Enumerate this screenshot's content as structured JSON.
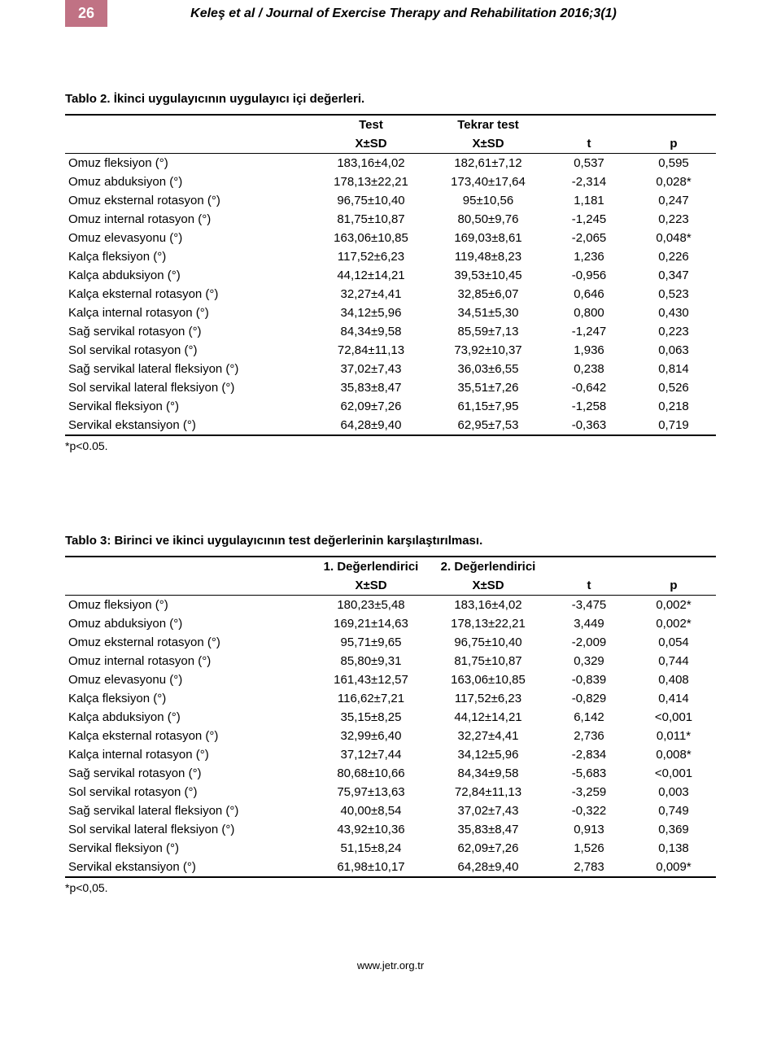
{
  "page": {
    "number": "26",
    "header": "Keleş et al / Journal of Exercise Therapy and Rehabilitation 2016;3(1)",
    "footer_url": "www.jetr.org.tr"
  },
  "table2": {
    "caption": "Tablo 2. İkinci uygulayıcının uygulayıcı içi değerleri.",
    "header_row1": [
      "",
      "Test",
      "Tekrar test",
      "",
      ""
    ],
    "header_row2": [
      "",
      "X±SD",
      "X±SD",
      "t",
      "p"
    ],
    "col_widths": [
      "38%",
      "18%",
      "18%",
      "13%",
      "13%"
    ],
    "rows": [
      [
        "Omuz fleksiyon (°)",
        "183,16±4,02",
        "182,61±7,12",
        "0,537",
        "0,595"
      ],
      [
        "Omuz abduksiyon (°)",
        "178,13±22,21",
        "173,40±17,64",
        "-2,314",
        "0,028*"
      ],
      [
        "Omuz eksternal rotasyon (°)",
        "96,75±10,40",
        "95±10,56",
        "1,181",
        "0,247"
      ],
      [
        "Omuz internal rotasyon (°)",
        "81,75±10,87",
        "80,50±9,76",
        "-1,245",
        "0,223"
      ],
      [
        "Omuz elevasyonu (°)",
        "163,06±10,85",
        "169,03±8,61",
        "-2,065",
        "0,048*"
      ],
      [
        "Kalça fleksiyon (°)",
        "117,52±6,23",
        "119,48±8,23",
        "1,236",
        "0,226"
      ],
      [
        "Kalça abduksiyon (°)",
        "44,12±14,21",
        "39,53±10,45",
        "-0,956",
        "0,347"
      ],
      [
        "Kalça eksternal rotasyon (°)",
        "32,27±4,41",
        "32,85±6,07",
        "0,646",
        "0,523"
      ],
      [
        "Kalça internal rotasyon (°)",
        "34,12±5,96",
        "34,51±5,30",
        "0,800",
        "0,430"
      ],
      [
        "Sağ servikal rotasyon (°)",
        "84,34±9,58",
        "85,59±7,13",
        "-1,247",
        "0,223"
      ],
      [
        "Sol servikal rotasyon (°)",
        "72,84±11,13",
        "73,92±10,37",
        "1,936",
        "0,063"
      ],
      [
        "Sağ servikal lateral fleksiyon (°)",
        "37,02±7,43",
        "36,03±6,55",
        "0,238",
        "0,814"
      ],
      [
        "Sol servikal lateral fleksiyon (°)",
        "35,83±8,47",
        "35,51±7,26",
        "-0,642",
        "0,526"
      ],
      [
        "Servikal fleksiyon (°)",
        "62,09±7,26",
        "61,15±7,95",
        "-1,258",
        "0,218"
      ],
      [
        "Servikal ekstansiyon (°)",
        "64,28±9,40",
        "62,95±7,53",
        "-0,363",
        "0,719"
      ]
    ],
    "footnote": "*p<0.05."
  },
  "table3": {
    "caption": "Tablo 3: Birinci ve ikinci uygulayıcının test değerlerinin karşılaştırılması.",
    "header_row1": [
      "",
      "1. Değerlendirici",
      "2. Değerlendirici",
      "",
      ""
    ],
    "header_row2": [
      "",
      "X±SD",
      "X±SD",
      "t",
      "p"
    ],
    "col_widths": [
      "38%",
      "18%",
      "18%",
      "13%",
      "13%"
    ],
    "rows": [
      [
        "Omuz fleksiyon (°)",
        "180,23±5,48",
        "183,16±4,02",
        "-3,475",
        "0,002*"
      ],
      [
        "Omuz abduksiyon (°)",
        "169,21±14,63",
        "178,13±22,21",
        "3,449",
        "0,002*"
      ],
      [
        "Omuz eksternal rotasyon (°)",
        "95,71±9,65",
        "96,75±10,40",
        "-2,009",
        "0,054"
      ],
      [
        "Omuz internal rotasyon (°)",
        "85,80±9,31",
        "81,75±10,87",
        "0,329",
        "0,744"
      ],
      [
        "Omuz elevasyonu (°)",
        "161,43±12,57",
        "163,06±10,85",
        "-0,839",
        "0,408"
      ],
      [
        "Kalça fleksiyon (°)",
        "116,62±7,21",
        "117,52±6,23",
        "-0,829",
        "0,414"
      ],
      [
        "Kalça abduksiyon (°)",
        "35,15±8,25",
        "44,12±14,21",
        "6,142",
        "<0,001"
      ],
      [
        "Kalça eksternal rotasyon (°)",
        "32,99±6,40",
        "32,27±4,41",
        "2,736",
        "0,011*"
      ],
      [
        "Kalça internal rotasyon (°)",
        "37,12±7,44",
        "34,12±5,96",
        "-2,834",
        "0,008*"
      ],
      [
        "Sağ servikal rotasyon (°)",
        "80,68±10,66",
        "84,34±9,58",
        "-5,683",
        "<0,001"
      ],
      [
        "Sol servikal rotasyon (°)",
        "75,97±13,63",
        "72,84±11,13",
        "-3,259",
        "0,003"
      ],
      [
        "Sağ servikal lateral fleksiyon (°)",
        "40,00±8,54",
        "37,02±7,43",
        "-0,322",
        "0,749"
      ],
      [
        "Sol servikal lateral fleksiyon (°)",
        "43,92±10,36",
        "35,83±8,47",
        "0,913",
        "0,369"
      ],
      [
        "Servikal fleksiyon (°)",
        "51,15±8,24",
        "62,09±7,26",
        "1,526",
        "0,138"
      ],
      [
        "Servikal ekstansiyon (°)",
        "61,98±10,17",
        "64,28±9,40",
        "2,783",
        "0,009*"
      ]
    ],
    "footnote": "*p<0,05."
  },
  "colors": {
    "badge_bg": "#c07284",
    "badge_text": "#ffffff",
    "text": "#000000",
    "background": "#ffffff",
    "border": "#000000"
  },
  "fonts": {
    "body_size_pt": 11,
    "header_size_pt": 12,
    "caption_weight": "bold"
  }
}
